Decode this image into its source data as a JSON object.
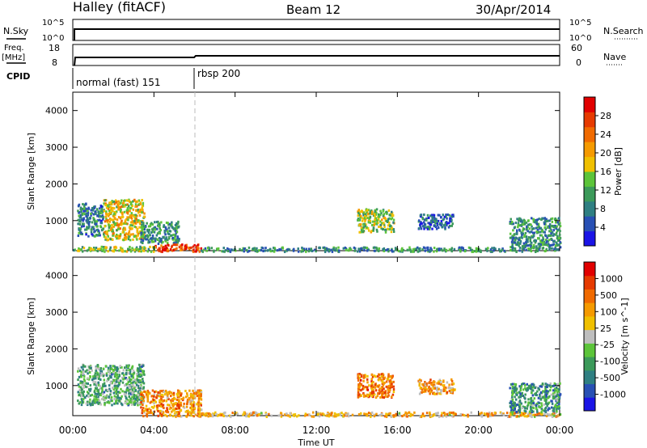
{
  "header": {
    "station": "Halley (fitACF)",
    "beam": "Beam 12",
    "date": "30/Apr/2014"
  },
  "panels": {
    "nsky_label": "N.Sky",
    "nsky_ticks": [
      "10^5",
      "10^0"
    ],
    "nsearch_label": "N.Search",
    "nsearch_ticks": [
      "10^5",
      "10^0"
    ],
    "freq_label": "Freq.",
    "freq_unit": "[MHz]",
    "freq_ticks": [
      "18",
      "8"
    ],
    "nave_label": "Nave",
    "nave_ticks": [
      "60",
      "0"
    ],
    "cpid_label": "CPID",
    "cpid_modes": [
      "normal (fast) 151",
      "rbsp 200"
    ],
    "cpid_change_hour": 6.0
  },
  "chart_data": [
    {
      "type": "heatmap",
      "name": "power",
      "ylabel": "Slant Range [km]",
      "xlabel": "Time UT",
      "x_ticks": [
        "00:00",
        "04:00",
        "08:00",
        "12:00",
        "16:00",
        "20:00",
        "00:00"
      ],
      "x_range": [
        0,
        24
      ],
      "y_ticks": [
        "1000",
        "2000",
        "3000",
        "4000"
      ],
      "y_range": [
        180,
        4500
      ],
      "colorbar_label": "Power [dB]",
      "colorbar_ticks": [
        "4",
        "8",
        "12",
        "16",
        "20",
        "24",
        "28"
      ],
      "colorbar_range": [
        0,
        32
      ],
      "colors": [
        "#1a14e6",
        "#2850b4",
        "#2f7f82",
        "#3c9a5a",
        "#5cc43a",
        "#f0c000",
        "#f59a00",
        "#f06a00",
        "#e63a00",
        "#e10000"
      ],
      "patches": [
        {
          "t0": 0.2,
          "t1": 1.5,
          "r0": 600,
          "r1": 1500,
          "level": 0.25
        },
        {
          "t0": 1.5,
          "t1": 3.5,
          "r0": 500,
          "r1": 1600,
          "level": 0.55
        },
        {
          "t0": 3.3,
          "t1": 5.2,
          "r0": 400,
          "r1": 1000,
          "level": 0.3
        },
        {
          "t0": 4.0,
          "t1": 6.3,
          "r0": 180,
          "r1": 380,
          "level": 0.85
        },
        {
          "t0": 0.0,
          "t1": 4.0,
          "r0": 180,
          "r1": 320,
          "level": 0.45
        },
        {
          "t0": 6.3,
          "t1": 24,
          "r0": 180,
          "r1": 300,
          "level": 0.3
        },
        {
          "t0": 14.0,
          "t1": 15.8,
          "r0": 700,
          "r1": 1350,
          "level": 0.45
        },
        {
          "t0": 17.0,
          "t1": 18.8,
          "r0": 800,
          "r1": 1200,
          "level": 0.2
        },
        {
          "t0": 21.5,
          "t1": 24,
          "r0": 300,
          "r1": 1100,
          "level": 0.3
        }
      ]
    },
    {
      "type": "heatmap",
      "name": "velocity",
      "ylabel": "Slant Range [km]",
      "xlabel": "Time UT",
      "x_ticks": [
        "00:00",
        "04:00",
        "08:00",
        "12:00",
        "16:00",
        "20:00",
        "00:00"
      ],
      "x_range": [
        0,
        24
      ],
      "y_ticks": [
        "1000",
        "2000",
        "3000",
        "4000"
      ],
      "y_range": [
        180,
        4500
      ],
      "colorbar_label": "Velocity [m s^-1]",
      "colorbar_ticks": [
        "1000",
        "500",
        "100",
        "25",
        "-25",
        "-100",
        "-500",
        "-1000"
      ],
      "colors": [
        "#1a14e6",
        "#2850b4",
        "#2f7f82",
        "#3c9a5a",
        "#5cc43a",
        "#bebebe",
        "#f0c000",
        "#f59a00",
        "#f06a00",
        "#e63a00",
        "#e10000"
      ],
      "patches": [
        {
          "t0": 0.2,
          "t1": 3.5,
          "r0": 500,
          "r1": 1600,
          "level": 0.35
        },
        {
          "t0": 3.3,
          "t1": 6.3,
          "r0": 180,
          "r1": 900,
          "level": 0.7
        },
        {
          "t0": 6.3,
          "t1": 24,
          "r0": 180,
          "r1": 300,
          "level": 0.62
        },
        {
          "t0": 14.0,
          "t1": 15.8,
          "r0": 700,
          "r1": 1350,
          "level": 0.75
        },
        {
          "t0": 17.0,
          "t1": 18.8,
          "r0": 800,
          "r1": 1200,
          "level": 0.65
        },
        {
          "t0": 21.5,
          "t1": 24,
          "r0": 300,
          "r1": 1100,
          "level": 0.3
        }
      ]
    }
  ]
}
